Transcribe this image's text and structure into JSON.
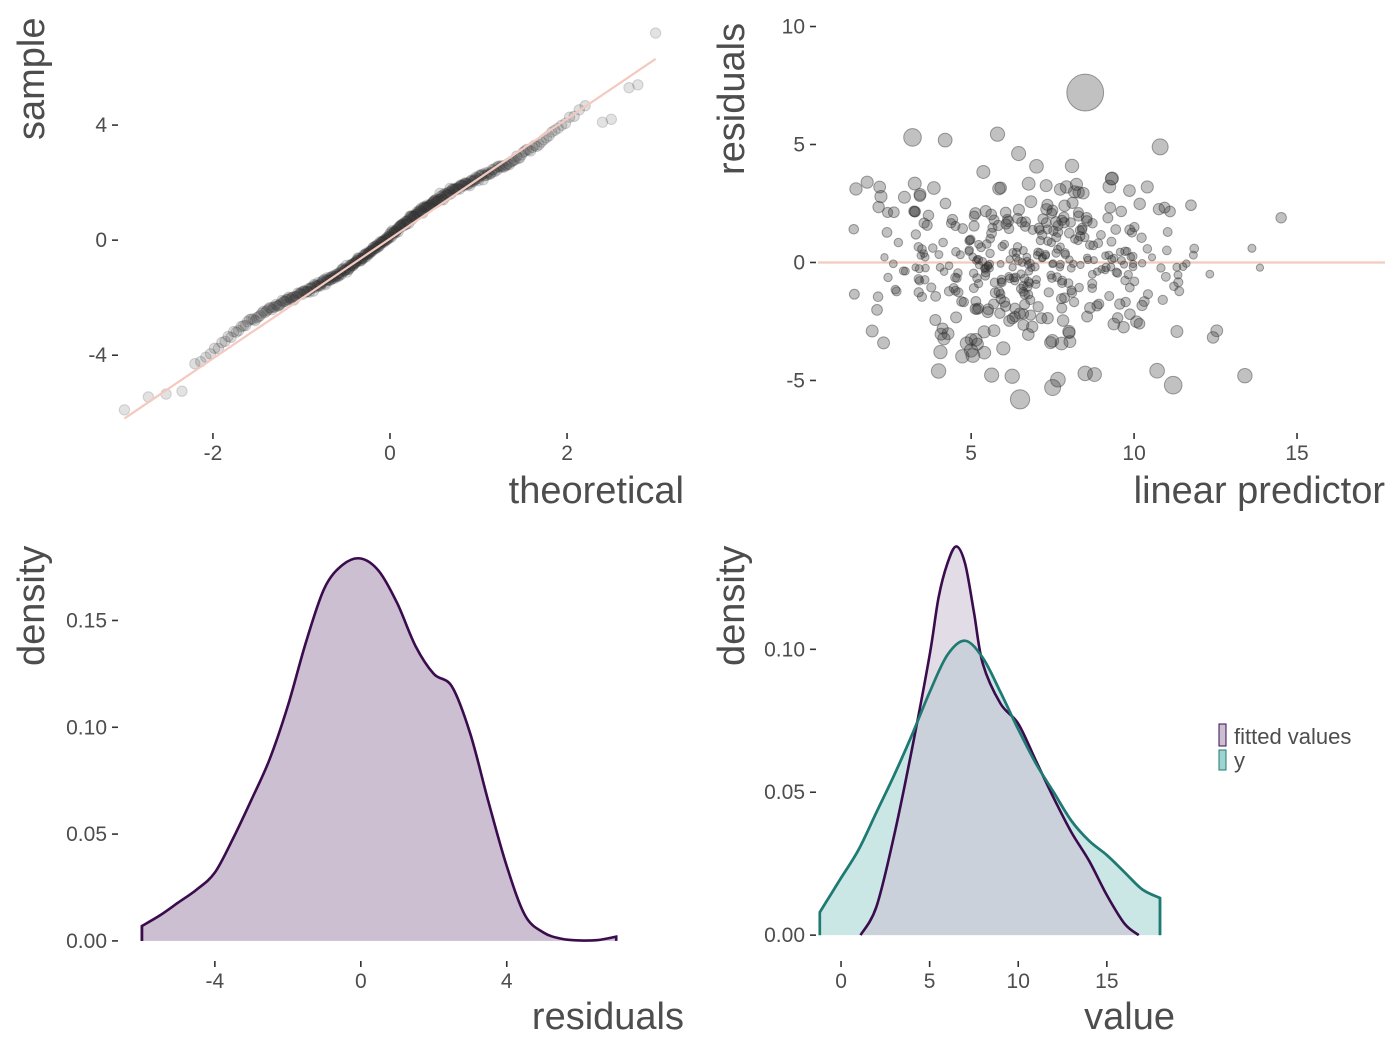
{
  "chart_data": [
    {
      "id": "qq",
      "type": "scatter",
      "xlabel": "theoretical",
      "ylabel": "sample",
      "xlim": [
        -3.05,
        3.05
      ],
      "ylim": [
        -6.6,
        8.0
      ],
      "xticks": [
        -2,
        0,
        2
      ],
      "yticks": [
        -4,
        0,
        4
      ],
      "ref_line": {
        "x": [
          -3.0,
          3.0
        ],
        "y": [
          -6.2,
          6.3
        ],
        "color": "#f4c9be"
      },
      "point_color": "#333333",
      "n_points": 400,
      "extreme_points": [
        [
          -3.0,
          -5.9
        ],
        [
          -2.73,
          -5.45
        ],
        [
          -2.53,
          -5.35
        ],
        [
          -2.35,
          -5.25
        ],
        [
          2.4,
          4.1
        ],
        [
          2.5,
          4.2
        ],
        [
          2.7,
          5.3
        ],
        [
          2.8,
          5.4
        ],
        [
          3.0,
          7.2
        ]
      ],
      "grid": false
    },
    {
      "id": "resid_vs_fitted",
      "type": "scatter",
      "xlabel": "linear predictor",
      "ylabel": "residuals",
      "xlim": [
        0.3,
        17.7
      ],
      "ylim": [
        -7.1,
        10.7
      ],
      "xticks": [
        5,
        10,
        15
      ],
      "yticks": [
        -5,
        0,
        5,
        10
      ],
      "hline": {
        "y": 0,
        "color": "#f4c9be"
      },
      "point_color": "#333333",
      "n_points": 400,
      "notable_points": [
        [
          8.5,
          7.2,
          2.3
        ],
        [
          3.2,
          5.3,
          1.1
        ],
        [
          10.8,
          4.9,
          1.0
        ],
        [
          11.2,
          -5.2,
          1.1
        ],
        [
          6.5,
          -5.8,
          1.2
        ],
        [
          7.5,
          -5.3,
          1.0
        ],
        [
          13.4,
          -4.8,
          0.9
        ],
        [
          4.0,
          -4.6,
          0.9
        ],
        [
          8.5,
          -4.7,
          0.9
        ]
      ],
      "grid": false
    },
    {
      "id": "resid_density",
      "type": "area",
      "xlabel": "residuals",
      "ylabel": "density",
      "xlim": [
        -6.6,
        8.2
      ],
      "ylim": [
        -0.008,
        0.19
      ],
      "xticks": [
        -4,
        0,
        4
      ],
      "yticks": [
        0.0,
        0.05,
        0.1,
        0.15
      ],
      "yticklabels": [
        "0.00",
        "0.05",
        "0.10",
        "0.15"
      ],
      "fill": "#cbbfd1",
      "stroke": "#3a0b4d",
      "x": [
        -6.0,
        -5.5,
        -5.0,
        -4.5,
        -4.0,
        -3.5,
        -3.0,
        -2.5,
        -2.0,
        -1.5,
        -1.0,
        -0.5,
        0.0,
        0.5,
        1.0,
        1.5,
        2.0,
        2.5,
        3.0,
        3.5,
        4.0,
        4.5,
        5.0,
        5.5,
        6.0,
        6.5,
        7.0
      ],
      "y": [
        0.007,
        0.012,
        0.018,
        0.024,
        0.032,
        0.048,
        0.066,
        0.085,
        0.11,
        0.14,
        0.165,
        0.176,
        0.179,
        0.173,
        0.158,
        0.138,
        0.125,
        0.119,
        0.097,
        0.065,
        0.035,
        0.012,
        0.004,
        0.001,
        0.0002,
        0.0004,
        0.002
      ]
    },
    {
      "id": "ppc_density",
      "type": "area",
      "xlabel": "value",
      "ylabel": "density",
      "xlim": [
        -1.3,
        18.0
      ],
      "ylim": [
        -0.008,
        0.14
      ],
      "xticks": [
        0,
        5,
        10,
        15
      ],
      "yticks": [
        0.0,
        0.05,
        0.1
      ],
      "yticklabels": [
        "0.00",
        "0.05",
        "0.10"
      ],
      "series": [
        {
          "name": "fitted values",
          "fill": "#cbbfd1",
          "stroke": "#3a0b4d",
          "x": [
            1.1,
            2.0,
            3.0,
            4.0,
            5.0,
            5.5,
            6.0,
            6.5,
            7.0,
            7.5,
            8.0,
            9.0,
            10.0,
            11.0,
            12.0,
            13.0,
            14.0,
            15.0,
            16.0,
            16.8
          ],
          "y": [
            0.0,
            0.01,
            0.035,
            0.065,
            0.098,
            0.118,
            0.13,
            0.136,
            0.13,
            0.113,
            0.095,
            0.081,
            0.074,
            0.061,
            0.048,
            0.036,
            0.026,
            0.014,
            0.004,
            0.0
          ]
        },
        {
          "name": "y",
          "fill": "#9ed4d0",
          "stroke": "#1f7a73",
          "x": [
            -1.2,
            -0.5,
            0.0,
            1.0,
            2.0,
            3.0,
            4.0,
            5.0,
            6.0,
            7.0,
            8.0,
            9.0,
            10.0,
            11.0,
            12.0,
            13.0,
            14.0,
            15.0,
            16.0,
            17.0,
            18.0
          ],
          "y": [
            0.008,
            0.015,
            0.02,
            0.03,
            0.043,
            0.056,
            0.07,
            0.085,
            0.098,
            0.103,
            0.097,
            0.085,
            0.072,
            0.06,
            0.05,
            0.04,
            0.033,
            0.028,
            0.022,
            0.016,
            0.013
          ]
        }
      ],
      "legend": {
        "position": "right",
        "entries": [
          "fitted values",
          "y"
        ]
      }
    }
  ]
}
